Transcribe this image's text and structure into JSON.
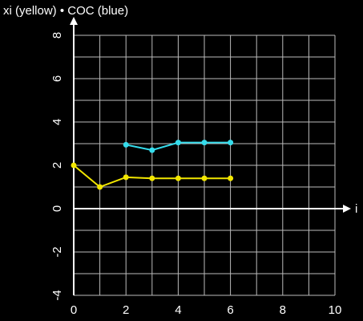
{
  "chart_data": {
    "type": "line",
    "title": "xi (yellow) • COC (blue)",
    "xlabel": "i",
    "x": [
      0,
      1,
      2,
      3,
      4,
      5,
      6
    ],
    "series": [
      {
        "name": "xi",
        "color": "#f2e600",
        "values": [
          2.0,
          1.0,
          1.45,
          1.4,
          1.4,
          1.4,
          1.4
        ]
      },
      {
        "name": "COC",
        "color": "#35dcec",
        "values": [
          null,
          null,
          2.95,
          2.7,
          3.05,
          3.05,
          3.05
        ]
      }
    ],
    "xlim": [
      0,
      10
    ],
    "xticks": [
      0,
      2,
      4,
      6,
      8,
      10
    ],
    "ylim": [
      -4,
      8
    ],
    "yticks": [
      -4,
      -2,
      0,
      2,
      4,
      6,
      8
    ],
    "grid": true
  }
}
